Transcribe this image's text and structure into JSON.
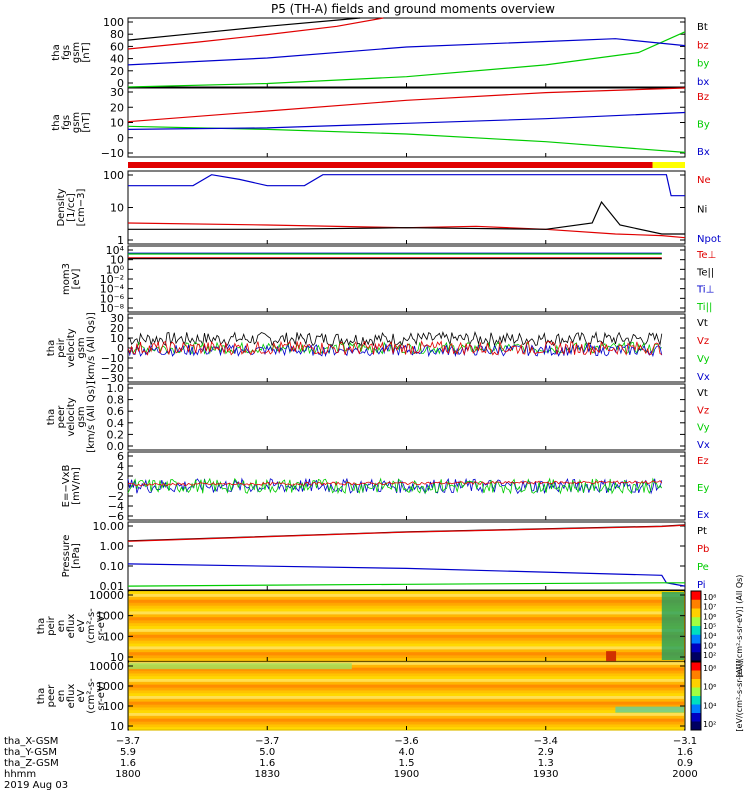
{
  "title": "P5 (TH-A) fields and ground moments overview",
  "colors": {
    "black": "#000000",
    "red": "#e00000",
    "green": "#00cc00",
    "blue": "#0000cc",
    "yellow": "#ffff00"
  },
  "chart_data": [
    {
      "type": "line",
      "ylabel": [
        "tha",
        "fgs",
        "gsm",
        "[nT]"
      ],
      "yticks": [
        "100",
        "80",
        "60",
        "40",
        "20",
        "0"
      ],
      "ylim": [
        0,
        100
      ],
      "legend": [
        {
          "label": "Bt",
          "color": "black"
        },
        {
          "label": "bz",
          "color": "red"
        },
        {
          "label": "by",
          "color": "green"
        },
        {
          "label": "bx",
          "color": "blue"
        }
      ],
      "series": [
        {
          "name": "Bt",
          "color": "black",
          "x": [
            1800,
            1815,
            1830,
            1845,
            1850
          ],
          "y": [
            68,
            78,
            88,
            97,
            100
          ]
        },
        {
          "name": "bz",
          "color": "red",
          "x": [
            1800,
            1815,
            1830,
            1845,
            1855
          ],
          "y": [
            55,
            65,
            76,
            88,
            100
          ]
        },
        {
          "name": "by",
          "color": "green",
          "x": [
            1800,
            1830,
            1900,
            1930,
            1950,
            2000
          ],
          "y": [
            0,
            5,
            15,
            32,
            50,
            80
          ]
        },
        {
          "name": "bx",
          "color": "blue",
          "x": [
            1800,
            1830,
            1900,
            1930,
            1945,
            2000
          ],
          "y": [
            32,
            42,
            58,
            66,
            70,
            60
          ]
        }
      ]
    },
    {
      "type": "line",
      "ylabel": [
        "tha",
        "fgs",
        "gsm",
        "[nT]"
      ],
      "yticks": [
        "30",
        "20",
        "10",
        "0",
        "−10"
      ],
      "ylim": [
        -15,
        30
      ],
      "legend": [
        {
          "label": "Bz",
          "color": "red"
        },
        {
          "label": "By",
          "color": "green"
        },
        {
          "label": "Bx",
          "color": "blue"
        }
      ],
      "series": [
        {
          "name": "Bz",
          "color": "red",
          "x": [
            1800,
            1830,
            1900,
            1930,
            2000
          ],
          "y": [
            8,
            15,
            22,
            27,
            30
          ]
        },
        {
          "name": "By",
          "color": "green",
          "x": [
            1800,
            1830,
            1900,
            1930,
            2000
          ],
          "y": [
            5,
            3,
            0,
            -5,
            -12
          ]
        },
        {
          "name": "Bx",
          "color": "blue",
          "x": [
            1800,
            1830,
            1900,
            1930,
            2000
          ],
          "y": [
            3,
            4,
            7,
            10,
            14
          ]
        }
      ]
    },
    {
      "type": "bar",
      "segments": [
        {
          "x0": 1800,
          "x1": 1953,
          "color": "red"
        },
        {
          "x0": 1953,
          "x1": 2000,
          "color": "yellow"
        }
      ]
    },
    {
      "type": "line",
      "scale": "log",
      "ylabel": [
        "Density",
        "[1/cc]",
        "[cm−3]"
      ],
      "yticks": [
        "100",
        "10",
        "1"
      ],
      "ylim": [
        0.1,
        300
      ],
      "legend": [
        {
          "label": "Ne",
          "color": "red"
        },
        {
          "label": "Ni",
          "color": "black"
        },
        {
          "label": "Npot",
          "color": "blue"
        }
      ],
      "series": [
        {
          "name": "Npot",
          "color": "blue",
          "x": [
            1800,
            1814,
            1818,
            1824,
            1830,
            1838,
            1842,
            1845,
            1955,
            1956,
            1957,
            1960,
            2000
          ],
          "y": [
            60,
            60,
            200,
            120,
            60,
            60,
            200,
            200,
            200,
            200,
            20,
            20,
            20
          ]
        },
        {
          "name": "Ne",
          "color": "red",
          "x": [
            1800,
            1830,
            1900,
            1915,
            1930,
            1945,
            1955,
            2000
          ],
          "y": [
            1,
            0.8,
            0.6,
            0.7,
            0.5,
            0.3,
            0.25,
            0.2
          ]
        },
        {
          "name": "Ni",
          "color": "black",
          "x": [
            1800,
            1830,
            1900,
            1930,
            1940,
            1942,
            1946,
            1955,
            1957,
            2000
          ],
          "y": [
            0.5,
            0.5,
            0.6,
            0.5,
            1,
            10,
            0.8,
            0.3,
            0.3,
            0.3
          ]
        }
      ]
    },
    {
      "type": "line",
      "scale": "log",
      "ylabel": [
        "mom3",
        "[eV]"
      ],
      "yticks": [
        "10⁴",
        "10⁲",
        "10⁰",
        "10⁻²",
        "10⁻⁴",
        "10⁻⁶",
        "10⁻⁸"
      ],
      "ylim": [
        1e-09,
        100000.0
      ],
      "legend": [
        {
          "label": "Te⊥",
          "color": "red"
        },
        {
          "label": "Te||",
          "color": "black"
        },
        {
          "label": "Ti⊥",
          "color": "blue"
        },
        {
          "label": "Ti||",
          "color": "green"
        }
      ],
      "series": [
        {
          "name": "Ti⊥",
          "color": "blue",
          "x": [
            1800,
            1900,
            1955
          ],
          "y": [
            3000,
            3000,
            3000
          ]
        },
        {
          "name": "Ti||",
          "color": "green",
          "x": [
            1800,
            1900,
            1955
          ],
          "y": [
            2000,
            2000,
            2000
          ]
        },
        {
          "name": "Te⊥",
          "color": "red",
          "x": [
            1800,
            1900,
            1955
          ],
          "y": [
            300,
            300,
            300
          ]
        },
        {
          "name": "Te||",
          "color": "black",
          "x": [
            1800,
            1900,
            1955
          ],
          "y": [
            200,
            200,
            200
          ]
        }
      ]
    },
    {
      "type": "line",
      "ylabel": [
        "tha",
        "peir",
        "velocity",
        "gsm",
        "[km/s (All Qs)]"
      ],
      "yticks": [
        "30",
        "20",
        "10",
        "0",
        "−10",
        "−20",
        "−30"
      ],
      "ylim": [
        -30,
        30
      ],
      "legend": [
        {
          "label": "Vt",
          "color": "black"
        },
        {
          "label": "Vz",
          "color": "red"
        },
        {
          "label": "Vy",
          "color": "green"
        },
        {
          "label": "Vx",
          "color": "blue"
        }
      ],
      "series": [
        {
          "name": "Vt",
          "color": "black",
          "x": [
            1800,
            1955
          ],
          "y": [
            8,
            8
          ],
          "noise": 6
        },
        {
          "name": "Vy",
          "color": "green",
          "x": [
            1800,
            1955
          ],
          "y": [
            0,
            0
          ],
          "noise": 5
        },
        {
          "name": "Vx",
          "color": "blue",
          "x": [
            1800,
            1955
          ],
          "y": [
            -2,
            -2
          ],
          "noise": 5
        },
        {
          "name": "Vz",
          "color": "red",
          "x": [
            1800,
            1955
          ],
          "y": [
            0,
            0
          ],
          "noise": 6
        }
      ]
    },
    {
      "type": "line",
      "ylabel": [
        "tha",
        "peer",
        "velocity",
        "gsm",
        "[km/s (All Qs)]"
      ],
      "yticks": [
        "1.0",
        "0.8",
        "0.6",
        "0.4",
        "0.2",
        "0.0"
      ],
      "ylim": [
        0,
        1
      ],
      "legend": [
        {
          "label": "Vt",
          "color": "black"
        },
        {
          "label": "Vz",
          "color": "red"
        },
        {
          "label": "Vy",
          "color": "green"
        },
        {
          "label": "Vx",
          "color": "blue"
        }
      ],
      "series": []
    },
    {
      "type": "line",
      "ylabel": [
        "E=−VxB",
        "[mV/m]"
      ],
      "yticks": [
        "6",
        "4",
        "2",
        "0",
        "−2",
        "−4",
        "−6"
      ],
      "ylim": [
        -7,
        7
      ],
      "legend": [
        {
          "label": "Ez",
          "color": "red"
        },
        {
          "label": "Ey",
          "color": "green"
        },
        {
          "label": "Ex",
          "color": "blue"
        }
      ],
      "series": [
        {
          "name": "Ex",
          "color": "blue",
          "x": [
            1800,
            1900,
            1955
          ],
          "y": [
            0,
            0,
            0
          ],
          "noise": 1.5
        },
        {
          "name": "Ey",
          "color": "green",
          "x": [
            1800,
            1900,
            1955
          ],
          "y": [
            0,
            0,
            0
          ],
          "noise": 1.5
        },
        {
          "name": "Ez",
          "color": "red",
          "x": [
            1800,
            1900,
            1955
          ],
          "y": [
            0.3,
            0.2,
            0.8
          ],
          "noise": 0.3
        }
      ]
    },
    {
      "type": "line",
      "scale": "log",
      "ylabel": [
        "Pressure",
        "[nPa]"
      ],
      "yticks": [
        "10.00",
        "1.00",
        "0.10",
        "0.01"
      ],
      "ylim": [
        0.005,
        20
      ],
      "legend": [
        {
          "label": "Pt",
          "color": "black"
        },
        {
          "label": "Pb",
          "color": "red"
        },
        {
          "label": "Pe",
          "color": "green"
        },
        {
          "label": "Pi",
          "color": "blue"
        }
      ],
      "series": [
        {
          "name": "Pt",
          "color": "black",
          "x": [
            1800,
            1900,
            1955,
            2000
          ],
          "y": [
            2,
            6,
            12,
            14
          ]
        },
        {
          "name": "Pb",
          "color": "red",
          "x": [
            1800,
            1900,
            1955,
            2000
          ],
          "y": [
            1.9,
            5.8,
            11.5,
            13.5
          ]
        },
        {
          "name": "Pi",
          "color": "blue",
          "x": [
            1800,
            1900,
            1955,
            1956,
            2000
          ],
          "y": [
            0.12,
            0.07,
            0.03,
            0.012,
            0.008
          ]
        },
        {
          "name": "Pe",
          "color": "green",
          "x": [
            1800,
            1900,
            1955,
            2000
          ],
          "y": [
            0.008,
            0.01,
            0.012,
            0.012
          ]
        }
      ]
    },
    {
      "type": "heatmap",
      "scale": "log",
      "ylabel": [
        "tha",
        "peir",
        "en",
        "eflux",
        "eV",
        "(cm²-s-",
        "sr-eV)"
      ],
      "yticks": [
        "10000",
        "1000",
        "100",
        "10"
      ],
      "ylim": [
        5,
        20000
      ],
      "colorbar": {
        "label": "[eV/(cm²-s-sr-eV)] (All Qs)",
        "ticks": [
          "10⁸",
          "10⁷",
          "10⁶",
          "10⁵",
          "10⁴",
          "10³",
          "10²"
        ]
      }
    },
    {
      "type": "heatmap",
      "scale": "log",
      "ylabel": [
        "tha",
        "peer",
        "en",
        "eflux",
        "eV",
        "(cm²-s-",
        "sr-eV)"
      ],
      "yticks": [
        "10000",
        "1000",
        "100",
        "10"
      ],
      "ylim": [
        5,
        20000
      ],
      "colorbar": {
        "label": "[eV/(cm²-s-sr-eV)]",
        "ticks": [
          "10⁸",
          "10⁶",
          "10⁴",
          "10²"
        ]
      }
    }
  ],
  "axis_rows": [
    {
      "label": "tha_X-GSM",
      "values": [
        "−3.7",
        "−3.7",
        "−3.6",
        "−3.4",
        "−3.1"
      ]
    },
    {
      "label": "tha_Y-GSM",
      "values": [
        "5.9",
        "5.0",
        "4.0",
        "2.9",
        "1.6"
      ]
    },
    {
      "label": "tha_Z-GSM",
      "values": [
        "1.6",
        "1.6",
        "1.5",
        "1.3",
        "0.9"
      ]
    },
    {
      "label": "hhmm",
      "values": [
        "1800",
        "1830",
        "1900",
        "1930",
        "2000"
      ]
    }
  ],
  "date_label": "2019 Aug 03"
}
